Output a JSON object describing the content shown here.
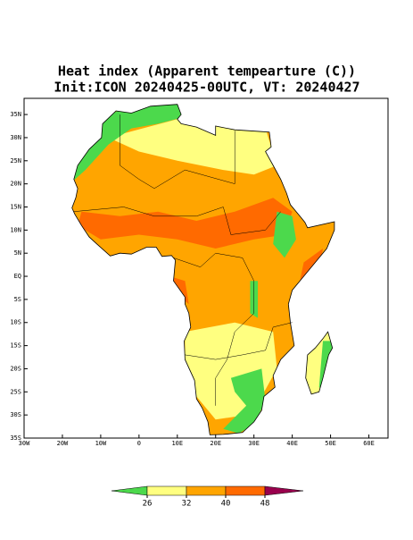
{
  "header": {
    "title": "Heat index (Apparent tempearture (C))",
    "subtitle": "Init:ICON 20240425-00UTC, VT: 20240427"
  },
  "map": {
    "xlim": [
      -30,
      65
    ],
    "ylim": [
      -35,
      38.5
    ],
    "xticks": [
      {
        "value": -30,
        "label": "30W"
      },
      {
        "value": -20,
        "label": "20W"
      },
      {
        "value": -10,
        "label": "10W"
      },
      0,
      {
        "value": 10,
        "label": "10E"
      },
      {
        "value": 20,
        "label": "20E"
      },
      {
        "value": 30,
        "label": "30E"
      },
      {
        "value": 40,
        "label": "40E"
      },
      {
        "value": 50,
        "label": "50E"
      },
      {
        "value": 60,
        "label": "60E"
      }
    ],
    "yticks": [
      {
        "value": 35,
        "label": "35N"
      },
      {
        "value": 30,
        "label": "30N"
      },
      {
        "value": 25,
        "label": "25N"
      },
      {
        "value": 20,
        "label": "20N"
      },
      {
        "value": 15,
        "label": "15N"
      },
      {
        "value": 10,
        "label": "10N"
      },
      {
        "value": 5,
        "label": "5N"
      },
      {
        "value": 0,
        "label": "EQ"
      },
      {
        "value": -5,
        "label": "5S"
      },
      {
        "value": -10,
        "label": "10S"
      },
      {
        "value": -15,
        "label": "15S"
      },
      {
        "value": -20,
        "label": "20S"
      },
      {
        "value": -25,
        "label": "25S"
      },
      {
        "value": -30,
        "label": "30S"
      },
      {
        "value": -35,
        "label": "35S"
      }
    ]
  },
  "colorbar": {
    "levels": [
      26,
      32,
      40,
      48
    ],
    "colors": [
      "#4cd94c",
      "#ffff80",
      "#ffa500",
      "#ff6a00",
      "#99004d"
    ]
  }
}
